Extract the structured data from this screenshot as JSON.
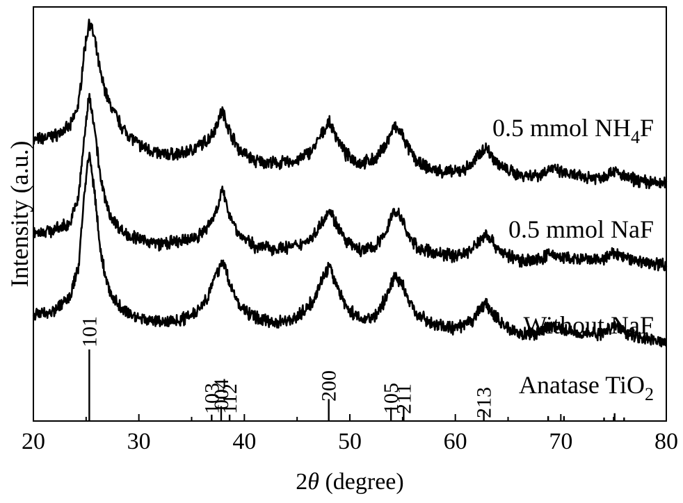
{
  "chart_data": {
    "type": "line",
    "xlabel_prefix": "2",
    "xlabel_symbol": "θ",
    "xlabel_suffix": " (degree)",
    "ylabel": "Intensity (a.u.)",
    "xlim": [
      20,
      80
    ],
    "x_ticks": [
      20,
      30,
      40,
      50,
      60,
      70,
      80
    ],
    "y_ticks_shown": false,
    "grid": false,
    "legend": "none",
    "series": [
      {
        "name": "0.5 mmol NH4F",
        "label_parts": {
          "base": "0.5 mmol NH",
          "sub": "4",
          "tail": "F"
        },
        "x": [
          20,
          22,
          23.5,
          24.3,
          24.8,
          25.3,
          25.8,
          26.4,
          27.2,
          28.5,
          30,
          32,
          34,
          35.5,
          36.5,
          37.2,
          37.9,
          38.6,
          39.5,
          41,
          43,
          45,
          46.5,
          47.4,
          48.0,
          48.7,
          49.6,
          51,
          52.5,
          53.5,
          54.2,
          54.9,
          55.6,
          56.5,
          58,
          60,
          61.5,
          62.4,
          62.9,
          63.5,
          64.5,
          66,
          68,
          69.0,
          70,
          72,
          74,
          75.0,
          76,
          78,
          80
        ],
        "y": [
          0.62,
          0.64,
          0.68,
          0.78,
          1.0,
          1.14,
          1.06,
          0.9,
          0.78,
          0.67,
          0.6,
          0.56,
          0.56,
          0.59,
          0.62,
          0.67,
          0.75,
          0.66,
          0.58,
          0.53,
          0.52,
          0.53,
          0.58,
          0.65,
          0.7,
          0.64,
          0.56,
          0.52,
          0.54,
          0.61,
          0.68,
          0.65,
          0.58,
          0.52,
          0.49,
          0.48,
          0.51,
          0.57,
          0.59,
          0.55,
          0.5,
          0.47,
          0.47,
          0.5,
          0.48,
          0.46,
          0.46,
          0.49,
          0.46,
          0.44,
          0.43
        ]
      },
      {
        "name": "0.5 mmol NaF",
        "label_parts": {
          "base": "0.5 mmol NaF",
          "sub": "",
          "tail": ""
        },
        "x": [
          20,
          22,
          23.5,
          24.3,
          24.8,
          25.3,
          25.8,
          26.4,
          27.2,
          28.5,
          30,
          32,
          34,
          35.5,
          36.5,
          37.2,
          37.9,
          38.6,
          39.5,
          41,
          43,
          45,
          46.5,
          47.4,
          48.0,
          48.7,
          49.6,
          51,
          52.5,
          53.5,
          54.2,
          54.9,
          55.6,
          56.5,
          58,
          60,
          61.5,
          62.4,
          62.9,
          63.5,
          64.5,
          66,
          68,
          69.0,
          70,
          72,
          74,
          75.0,
          76,
          78,
          80
        ],
        "y": [
          0.22,
          0.23,
          0.26,
          0.38,
          0.62,
          0.82,
          0.68,
          0.44,
          0.3,
          0.22,
          0.19,
          0.17,
          0.18,
          0.2,
          0.24,
          0.3,
          0.4,
          0.3,
          0.21,
          0.16,
          0.15,
          0.16,
          0.2,
          0.27,
          0.32,
          0.26,
          0.18,
          0.14,
          0.16,
          0.23,
          0.32,
          0.28,
          0.2,
          0.15,
          0.13,
          0.12,
          0.14,
          0.19,
          0.22,
          0.18,
          0.13,
          0.1,
          0.1,
          0.13,
          0.11,
          0.1,
          0.1,
          0.13,
          0.11,
          0.09,
          0.08
        ]
      },
      {
        "name": "Without NaF",
        "label_parts": {
          "base": "Without NaF",
          "sub": "",
          "tail": ""
        },
        "x": [
          20,
          22,
          23.5,
          24.3,
          24.8,
          25.3,
          25.8,
          26.4,
          27.2,
          28.5,
          30,
          32,
          34,
          35.5,
          36.5,
          37.2,
          37.9,
          38.6,
          39.5,
          41,
          43,
          45,
          46.5,
          47.4,
          48.0,
          48.7,
          49.6,
          51,
          52.5,
          53.5,
          54.2,
          54.9,
          55.6,
          56.5,
          58,
          60,
          61.5,
          62.4,
          62.9,
          63.5,
          64.5,
          66,
          68,
          69.0,
          70,
          72,
          74,
          75.0,
          76,
          78,
          80
        ],
        "y": [
          -0.14,
          -0.12,
          -0.06,
          0.08,
          0.38,
          0.56,
          0.4,
          0.12,
          -0.04,
          -0.12,
          -0.15,
          -0.17,
          -0.16,
          -0.12,
          -0.06,
          0.02,
          0.1,
          0.0,
          -0.1,
          -0.15,
          -0.17,
          -0.15,
          -0.08,
          0.02,
          0.07,
          0.0,
          -0.1,
          -0.16,
          -0.14,
          -0.06,
          0.03,
          0.0,
          -0.08,
          -0.14,
          -0.18,
          -0.2,
          -0.17,
          -0.11,
          -0.09,
          -0.13,
          -0.18,
          -0.22,
          -0.22,
          -0.18,
          -0.2,
          -0.22,
          -0.22,
          -0.18,
          -0.21,
          -0.24,
          -0.26
        ]
      }
    ],
    "reference": {
      "name": "Anatase TiO2",
      "label_parts": {
        "base": "Anatase TiO",
        "sub": "2",
        "tail": ""
      },
      "peaks": [
        {
          "x": 25.3,
          "intensity": 100,
          "hkl": "101"
        },
        {
          "x": 36.9,
          "intensity": 8,
          "hkl": "103"
        },
        {
          "x": 37.8,
          "intensity": 20,
          "hkl": "004"
        },
        {
          "x": 38.6,
          "intensity": 8,
          "hkl": "112"
        },
        {
          "x": 48.0,
          "intensity": 30,
          "hkl": "200"
        },
        {
          "x": 53.9,
          "intensity": 18,
          "hkl": "105"
        },
        {
          "x": 55.1,
          "intensity": 18,
          "hkl": "211"
        },
        {
          "x": 62.7,
          "intensity": 14,
          "hkl": "213"
        },
        {
          "x": 68.8,
          "intensity": 6,
          "hkl": ""
        },
        {
          "x": 70.3,
          "intensity": 6,
          "hkl": ""
        },
        {
          "x": 74.1,
          "intensity": 3,
          "hkl": ""
        },
        {
          "x": 75.1,
          "intensity": 10,
          "hkl": ""
        },
        {
          "x": 76.0,
          "intensity": 4,
          "hkl": ""
        }
      ]
    }
  }
}
